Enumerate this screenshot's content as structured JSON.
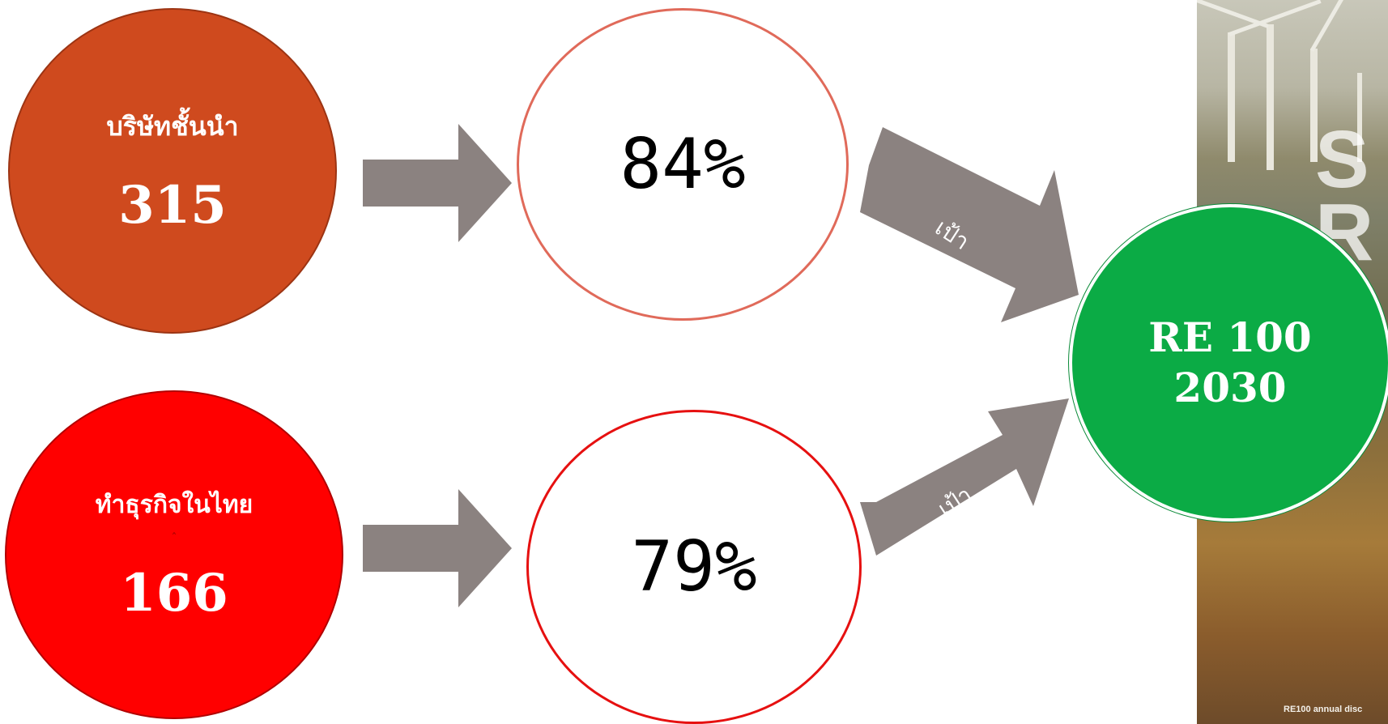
{
  "nodes": {
    "leading": {
      "label": "บริษัทชั้นนำ",
      "value": "315",
      "color": "#cf4a1e"
    },
    "thailand": {
      "label": "ทำธุรกิจในไทย",
      "value": "166",
      "color": "#ff0000"
    },
    "pct_top": {
      "value": "84%"
    },
    "pct_bottom": {
      "value": "79%"
    },
    "target": {
      "line1": "RE 100",
      "line2": "2030",
      "color": "#0bab45"
    }
  },
  "arrows": {
    "label_top": "เป้า",
    "label_bottom": "เป้า",
    "color": "#8b8280"
  },
  "background": {
    "letters": [
      "S",
      "R"
    ],
    "caption": "RE100 annual disc"
  }
}
